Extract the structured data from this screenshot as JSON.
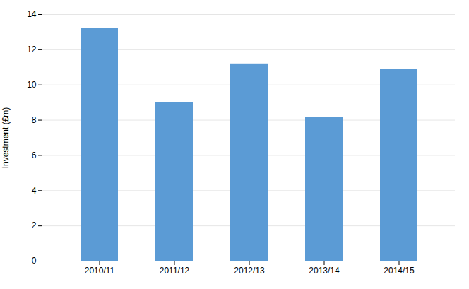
{
  "chart_data": {
    "type": "bar",
    "categories": [
      "2010/11",
      "2011/12",
      "2012/13",
      "2013/14",
      "2014/15"
    ],
    "values": [
      13.2,
      9.0,
      11.2,
      8.15,
      10.9
    ],
    "color": "#5B9BD5",
    "ylabel": "Investment (£m)",
    "ylim": [
      0,
      14
    ],
    "yticks": [
      0,
      2,
      4,
      6,
      8,
      10,
      12,
      14
    ],
    "grid": true
  }
}
